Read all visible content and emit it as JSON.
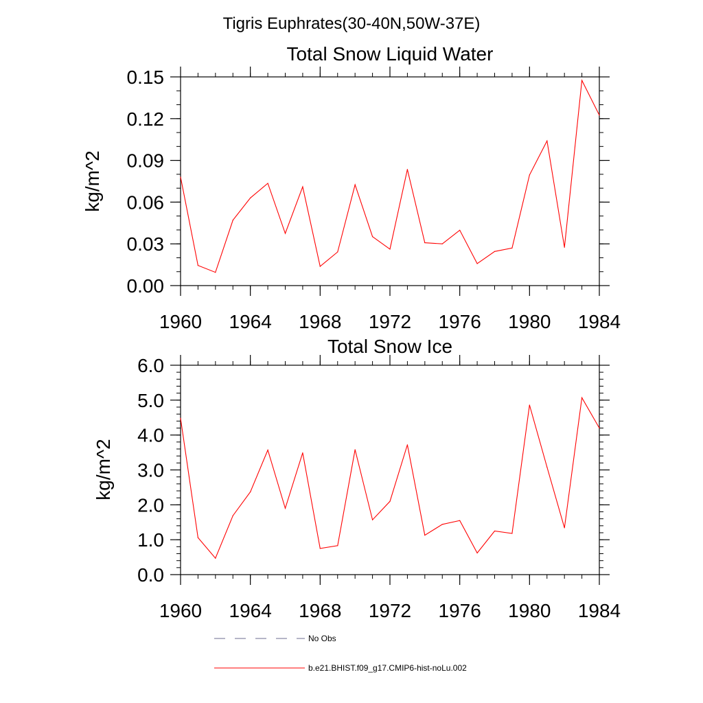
{
  "figure": {
    "title": "Tigris Euphrates(30-40N,50W-37E)"
  },
  "chart_data": [
    {
      "type": "line",
      "title": "Total Snow Liquid Water",
      "xlabel": "",
      "ylabel": "kg/m^2",
      "xlim": [
        1960,
        1984
      ],
      "ylim": [
        0,
        0.15
      ],
      "x_ticks": [
        1960,
        1964,
        1968,
        1972,
        1976,
        1980,
        1984
      ],
      "x_tick_labels": [
        "1960",
        "1964",
        "1968",
        "1972",
        "1976",
        "1980",
        "1984"
      ],
      "y_ticks": [
        0,
        0.03,
        0.06,
        0.09,
        0.12,
        0.15
      ],
      "y_tick_labels": [
        "0.00",
        "0.03",
        "0.06",
        "0.09",
        "0.12",
        "0.15"
      ],
      "x": [
        1960,
        1961,
        1962,
        1963,
        1964,
        1965,
        1966,
        1967,
        1968,
        1969,
        1970,
        1971,
        1972,
        1973,
        1974,
        1975,
        1976,
        1977,
        1978,
        1979,
        1980,
        1981,
        1982,
        1983,
        1984
      ],
      "series": [
        {
          "name": "b.e21.BHIST.f09_g17.CMIP6-hist-noLu.002",
          "color": "#ff0000",
          "values": [
            0.078,
            0.0145,
            0.0095,
            0.047,
            0.063,
            0.0735,
            0.0375,
            0.071,
            0.0138,
            0.0242,
            0.0725,
            0.0352,
            0.0262,
            0.0835,
            0.0308,
            0.03,
            0.0398,
            0.0158,
            0.0245,
            0.027,
            0.0795,
            0.104,
            0.0275,
            0.1475,
            0.1225
          ]
        }
      ]
    },
    {
      "type": "line",
      "title": "Total Snow Ice",
      "xlabel": "",
      "ylabel": "kg/m^2",
      "xlim": [
        1960,
        1984
      ],
      "ylim": [
        0,
        6
      ],
      "x_ticks": [
        1960,
        1964,
        1968,
        1972,
        1976,
        1980,
        1984
      ],
      "x_tick_labels": [
        "1960",
        "1964",
        "1968",
        "1972",
        "1976",
        "1980",
        "1984"
      ],
      "y_ticks": [
        0,
        1,
        2,
        3,
        4,
        5,
        6
      ],
      "y_tick_labels": [
        "0.0",
        "1.0",
        "2.0",
        "3.0",
        "4.0",
        "5.0",
        "6.0"
      ],
      "x": [
        1960,
        1961,
        1962,
        1963,
        1964,
        1965,
        1966,
        1967,
        1968,
        1969,
        1970,
        1971,
        1972,
        1973,
        1974,
        1975,
        1976,
        1977,
        1978,
        1979,
        1980,
        1981,
        1982,
        1983,
        1984
      ],
      "series": [
        {
          "name": "b.e21.BHIST.f09_g17.CMIP6-hist-noLu.002",
          "color": "#ff0000",
          "values": [
            4.48,
            1.06,
            0.47,
            1.69,
            2.37,
            3.57,
            1.9,
            3.49,
            0.75,
            0.83,
            3.58,
            1.57,
            2.1,
            3.72,
            1.13,
            1.44,
            1.55,
            0.62,
            1.25,
            1.18,
            4.86,
            3.08,
            1.34,
            5.07,
            4.2
          ]
        }
      ]
    }
  ],
  "legend": {
    "placement": "bottom",
    "items": [
      {
        "label": "No Obs",
        "style": "dashed",
        "color": "#6b6b8f"
      },
      {
        "label": "b.e21.BHIST.f09_g17.CMIP6-hist-noLu.002",
        "style": "solid",
        "color": "#ff0000"
      }
    ]
  }
}
